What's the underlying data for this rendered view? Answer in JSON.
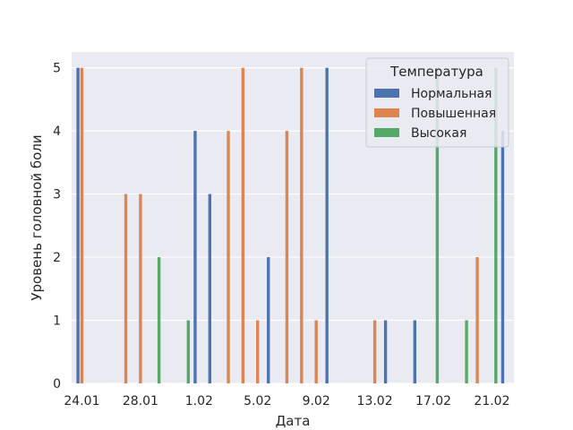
{
  "chart_data": {
    "type": "bar",
    "title": "",
    "xlabel": "Дата",
    "ylabel": "Уровень головной боли",
    "ylim": [
      0,
      5.25
    ],
    "yticks": [
      0,
      1,
      2,
      3,
      4,
      5
    ],
    "grid": true,
    "legend": {
      "title": "Температура",
      "placement": "top-right"
    },
    "x": [
      "24.01",
      "25.01",
      "26.01",
      "27.01",
      "28.01",
      "29.01",
      "30.01",
      "31.01",
      "1.02",
      "2.02",
      "3.02",
      "4.02",
      "5.02",
      "6.02",
      "7.02",
      "8.02",
      "9.02",
      "10.02",
      "11.02",
      "12.02",
      "13.02",
      "14.02",
      "15.02",
      "16.02",
      "17.02",
      "18.02",
      "19.02",
      "20.02",
      "21.02",
      "22.02"
    ],
    "x_tick_labels": [
      "24.01",
      "28.01",
      "1.02",
      "5.02",
      "9.02",
      "13.02",
      "17.02",
      "21.02"
    ],
    "series_colors": {
      "Нормальная": "#4c72b0",
      "Повышенная": "#dd8452",
      "Высокая": "#55a868"
    },
    "series": [
      {
        "name": "Нормальная",
        "points": [
          [
            0,
            5
          ],
          [
            8,
            4
          ],
          [
            9,
            3
          ],
          [
            13,
            2
          ],
          [
            17,
            5
          ],
          [
            21,
            1
          ],
          [
            23,
            1
          ],
          [
            29,
            4
          ]
        ]
      },
      {
        "name": "Повышенная",
        "points": [
          [
            0,
            5
          ],
          [
            3,
            3
          ],
          [
            4,
            3
          ],
          [
            10,
            4
          ],
          [
            11,
            5
          ],
          [
            12,
            1
          ],
          [
            14,
            4
          ],
          [
            15,
            5
          ],
          [
            16,
            1
          ],
          [
            20,
            1
          ],
          [
            27,
            2
          ]
        ]
      },
      {
        "name": "Высокая",
        "points": [
          [
            5,
            2
          ],
          [
            7,
            1
          ],
          [
            24,
            5
          ],
          [
            26,
            1
          ],
          [
            28,
            5
          ]
        ]
      }
    ]
  }
}
